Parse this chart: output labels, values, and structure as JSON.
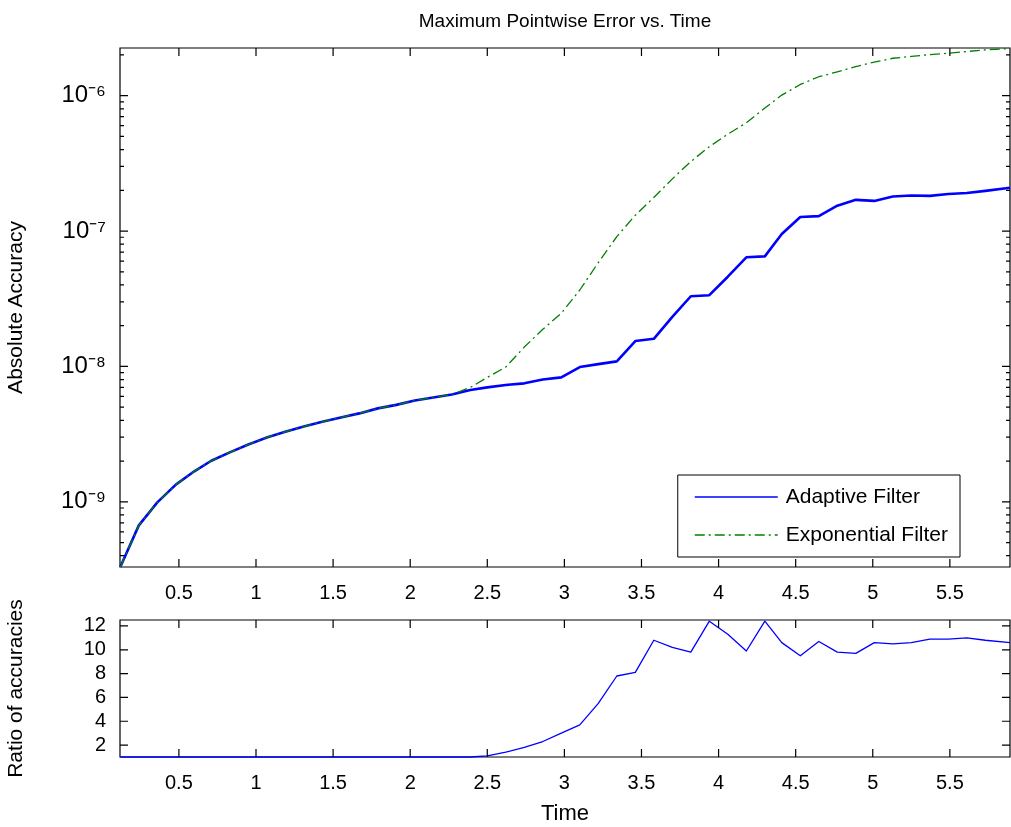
{
  "chart_data": [
    {
      "type": "line",
      "title": "Maximum Pointwise Error vs. Time",
      "ylabel": "Absolute Accuracy",
      "log": "y",
      "legend": "bottom right",
      "x": [
        0.12,
        0.24,
        0.36,
        0.48,
        0.6,
        0.71,
        0.83,
        0.95,
        1.07,
        1.19,
        1.31,
        1.43,
        1.55,
        1.67,
        1.79,
        1.91,
        2.03,
        2.15,
        2.27,
        2.39,
        2.5,
        2.62,
        2.74,
        2.86,
        2.98,
        3.1,
        3.22,
        3.34,
        3.46,
        3.58,
        3.7,
        3.82,
        3.94,
        4.06,
        4.18,
        4.3,
        4.41,
        4.53,
        4.65,
        4.77,
        4.89,
        5.01,
        5.13,
        5.25,
        5.37,
        5.49,
        5.61,
        5.73,
        5.89
      ],
      "series": [
        {
          "name": "Adaptive Filter",
          "color": "#0000ff",
          "line_style": "solid",
          "values": [
            3.3e-10,
            6.7e-10,
            9.9e-10,
            1.34e-09,
            1.68e-09,
            2.01e-09,
            2.32e-09,
            2.65e-09,
            2.99e-09,
            3.29e-09,
            3.6e-09,
            3.9e-09,
            4.2e-09,
            4.5e-09,
            4.9e-09,
            5.2e-09,
            5.6e-09,
            5.9e-09,
            6.2e-09,
            6.7e-09,
            7e-09,
            7.3e-09,
            7.5e-09,
            8e-09,
            8.3e-09,
            9.9e-09,
            1.04e-08,
            1.09e-08,
            1.54e-08,
            1.6e-08,
            2.32e-08,
            3.3e-08,
            3.36e-08,
            4.6e-08,
            6.4e-08,
            6.5e-08,
            9.5e-08,
            1.27e-07,
            1.29e-07,
            1.54e-07,
            1.7e-07,
            1.67e-07,
            1.8e-07,
            1.83e-07,
            1.82e-07,
            1.88e-07,
            1.91e-07,
            1.98e-07,
            2.09e-07
          ]
        },
        {
          "name": "Exponential Filter",
          "color": "#008000",
          "line_style": "dashed",
          "values": [
            3.3e-10,
            6.7e-10,
            9.9e-10,
            1.34e-09,
            1.68e-09,
            2.01e-09,
            2.32e-09,
            2.65e-09,
            2.99e-09,
            3.29e-09,
            3.6e-09,
            3.9e-09,
            4.2e-09,
            4.5e-09,
            4.9e-09,
            5.2e-09,
            5.6e-09,
            5.9e-09,
            6.2e-09,
            7e-09,
            8.3e-09,
            9.9e-09,
            1.39e-08,
            1.88e-08,
            2.47e-08,
            3.67e-08,
            5.85e-08,
            9.1e-08,
            1.31e-07,
            1.77e-07,
            2.43e-07,
            3.26e-07,
            4.2e-07,
            5.2e-07,
            6.3e-07,
            8.1e-07,
            1.01e-06,
            1.21e-06,
            1.38e-06,
            1.5e-06,
            1.64e-06,
            1.77e-06,
            1.89e-06,
            1.95e-06,
            2.01e-06,
            2.06e-06,
            2.12e-06,
            2.18e-06,
            2.23e-06
          ]
        }
      ],
      "xlim": [
        0.118,
        5.89
      ],
      "xticks": [
        0.5,
        1,
        1.5,
        2,
        2.5,
        3,
        3.5,
        4,
        4.5,
        5,
        5.5
      ],
      "ylim": [
        3.3e-10,
        2.25e-06
      ],
      "yticks": [
        {
          "value": 4e-10,
          "label": null
        },
        {
          "value": 5e-10,
          "label": null
        },
        {
          "value": 6e-10,
          "label": null
        },
        {
          "value": 7e-10,
          "label": null
        },
        {
          "value": 8e-10,
          "label": null
        },
        {
          "value": 9e-10,
          "label": null
        },
        {
          "value": 1e-09,
          "label": "10⁻⁹"
        },
        {
          "value": 2e-09,
          "label": null
        },
        {
          "value": 3e-09,
          "label": null
        },
        {
          "value": 4e-09,
          "label": null
        },
        {
          "value": 5e-09,
          "label": null
        },
        {
          "value": 6e-09,
          "label": null
        },
        {
          "value": 7e-09,
          "label": null
        },
        {
          "value": 8e-09,
          "label": null
        },
        {
          "value": 9e-09,
          "label": null
        },
        {
          "value": 1e-08,
          "label": "10⁻⁸"
        },
        {
          "value": 2e-08,
          "label": null
        },
        {
          "value": 3e-08,
          "label": null
        },
        {
          "value": 4e-08,
          "label": null
        },
        {
          "value": 5e-08,
          "label": null
        },
        {
          "value": 6e-08,
          "label": null
        },
        {
          "value": 7e-08,
          "label": null
        },
        {
          "value": 8e-08,
          "label": null
        },
        {
          "value": 9e-08,
          "label": null
        },
        {
          "value": 1e-07,
          "label": "10⁻⁷"
        },
        {
          "value": 2e-07,
          "label": null
        },
        {
          "value": 3e-07,
          "label": null
        },
        {
          "value": 4e-07,
          "label": null
        },
        {
          "value": 5e-07,
          "label": null
        },
        {
          "value": 6e-07,
          "label": null
        },
        {
          "value": 7e-07,
          "label": null
        },
        {
          "value": 8e-07,
          "label": null
        },
        {
          "value": 9e-07,
          "label": null
        },
        {
          "value": 1e-06,
          "label": "10⁻⁶"
        },
        {
          "value": 2e-06,
          "label": null
        }
      ]
    },
    {
      "type": "line",
      "xlabel": "Time",
      "ylabel": "Ratio of accuracies",
      "x": [
        0.12,
        0.24,
        0.36,
        0.48,
        0.6,
        0.71,
        0.83,
        0.95,
        1.07,
        1.19,
        1.31,
        1.43,
        1.55,
        1.67,
        1.79,
        1.91,
        2.03,
        2.15,
        2.27,
        2.39,
        2.5,
        2.62,
        2.74,
        2.86,
        2.98,
        3.1,
        3.22,
        3.34,
        3.46,
        3.58,
        3.7,
        3.82,
        3.94,
        4.06,
        4.18,
        4.3,
        4.41,
        4.53,
        4.65,
        4.77,
        4.89,
        5.01,
        5.13,
        5.25,
        5.37,
        5.49,
        5.61,
        5.73,
        5.89
      ],
      "series": [
        {
          "color": "#0000ff",
          "values": [
            1,
            1,
            1,
            1,
            1,
            1,
            1,
            1,
            1,
            1,
            1,
            1,
            1,
            1,
            1,
            1,
            1,
            1,
            1,
            1,
            1.1,
            1.4,
            1.8,
            2.3,
            3.0,
            3.7,
            5.5,
            7.8,
            8.1,
            10.8,
            10.2,
            9.8,
            12.4,
            11.3,
            9.9,
            12.4,
            10.6,
            9.5,
            10.7,
            9.8,
            9.7,
            10.6,
            10.5,
            10.6,
            10.9,
            10.9,
            11.0,
            10.8,
            10.6
          ]
        }
      ],
      "xlim": [
        0.118,
        5.89
      ],
      "xticks": [
        0.5,
        1,
        1.5,
        2,
        2.5,
        3,
        3.5,
        4,
        4.5,
        5,
        5.5
      ],
      "ylim": [
        1,
        12.5
      ],
      "yticks": [
        2,
        4,
        6,
        8,
        10,
        12
      ]
    }
  ]
}
